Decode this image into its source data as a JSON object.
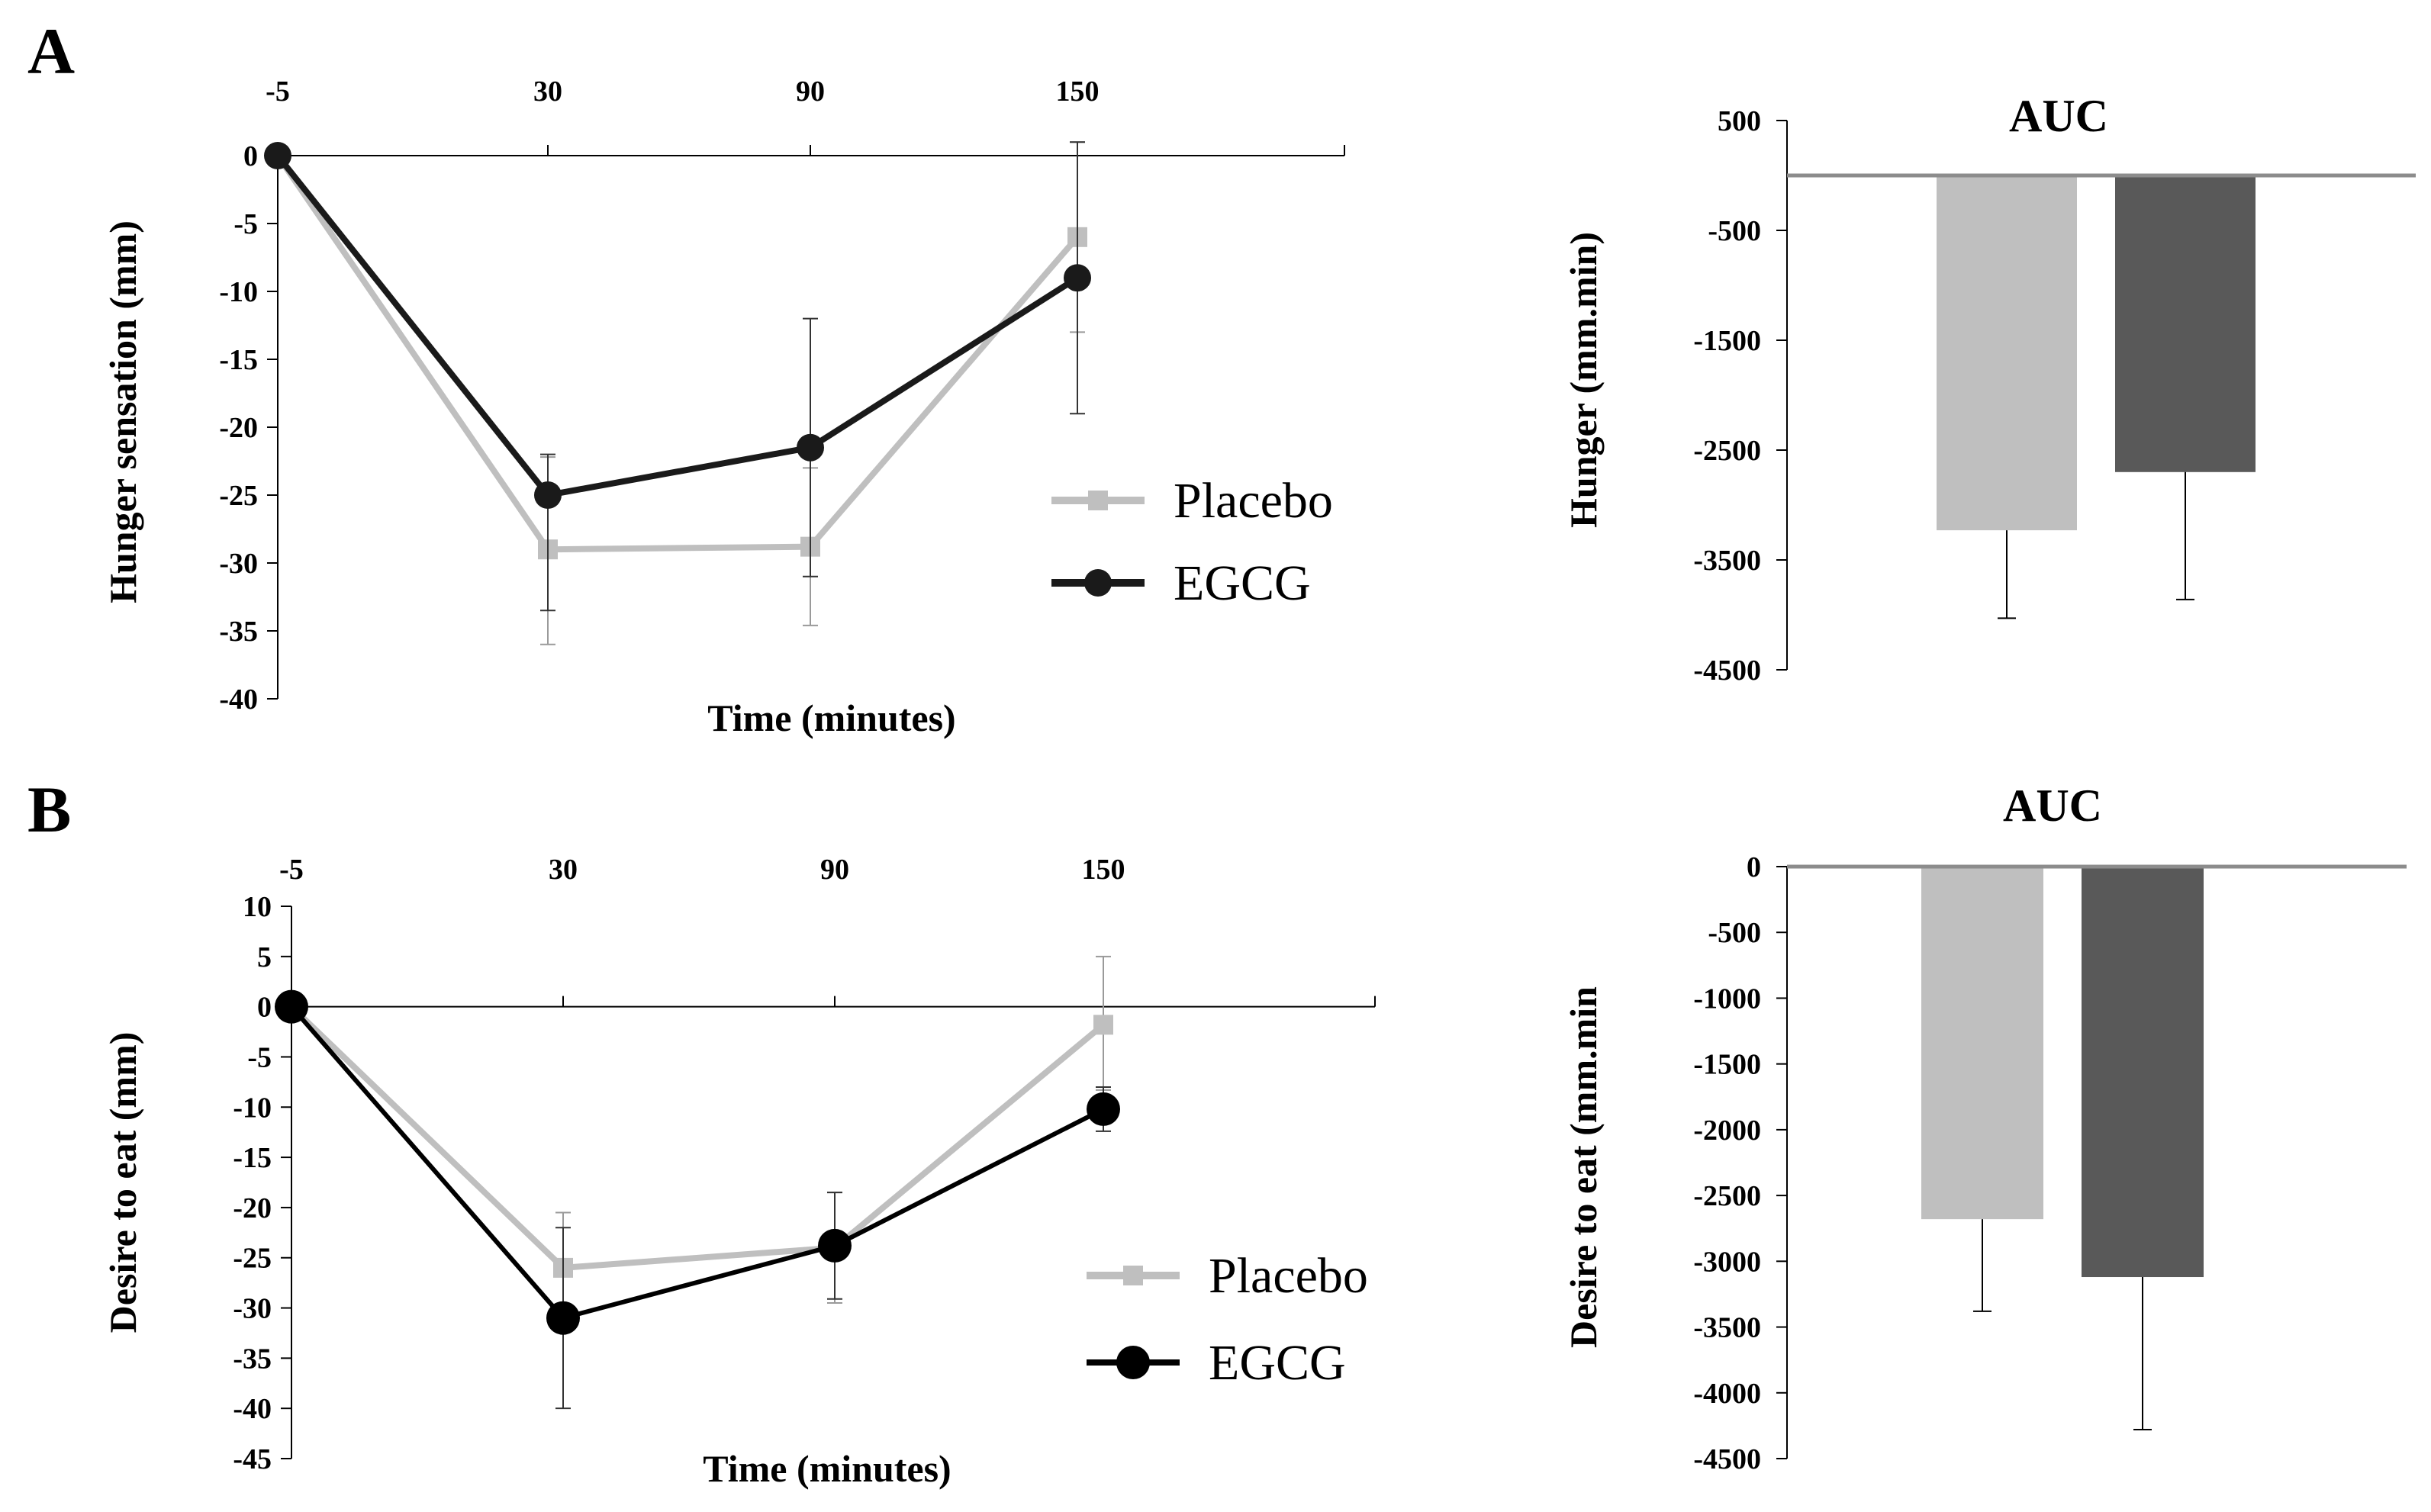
{
  "figure": {
    "panel_a_label": "A",
    "panel_b_label": "B"
  },
  "chart_data": [
    {
      "id": "a-line",
      "type": "line",
      "panel": "A",
      "title": "",
      "xlabel": "Time (minutes)",
      "ylabel": "Hunger sensation (mm)",
      "x": [
        "-5",
        "30",
        "90",
        "150"
      ],
      "ylim": [
        -40,
        0
      ],
      "yticks": [
        0,
        -5,
        -10,
        -15,
        -20,
        -25,
        -30,
        -35,
        -40
      ],
      "x_axis_at_top": true,
      "legend_position": "center-right",
      "series": [
        {
          "name": "Placebo",
          "color": "#bfbfbf",
          "marker": "square",
          "values": [
            0,
            -29,
            -28.8,
            -6
          ],
          "err_low": [
            0,
            7,
            5.8,
            7
          ],
          "err_high": [
            0,
            6.8,
            5.8,
            7
          ]
        },
        {
          "name": "EGCG",
          "color": "#1a1a1a",
          "marker": "circle",
          "values": [
            0,
            -25,
            -21.5,
            -9
          ],
          "err_low": [
            0,
            8.5,
            9.5,
            10
          ],
          "err_high": [
            0,
            3,
            9.5,
            10
          ]
        }
      ]
    },
    {
      "id": "a-bar",
      "type": "bar",
      "panel": "A",
      "title": "AUC",
      "xlabel": "",
      "ylabel": "Hunger (mm.min)",
      "categories": [
        "Placebo",
        "EGCG"
      ],
      "ylim": [
        -4500,
        500
      ],
      "yticks": [
        500,
        -500,
        -1500,
        -2500,
        -3500,
        -4500
      ],
      "values": [
        -3230,
        -2700
      ],
      "errors": [
        800,
        1160
      ],
      "colors": [
        "#bfbfbf",
        "#595959"
      ]
    },
    {
      "id": "b-line",
      "type": "line",
      "panel": "B",
      "title": "",
      "xlabel": "Time (minutes)",
      "ylabel": "Desire to eat (mm)",
      "x": [
        "-5",
        "30",
        "90",
        "150"
      ],
      "ylim": [
        -45,
        10
      ],
      "yticks": [
        10,
        5,
        0,
        -5,
        -10,
        -15,
        -20,
        -25,
        -30,
        -35,
        -40,
        -45
      ],
      "x_axis_at_top": true,
      "legend_position": "center-right",
      "series": [
        {
          "name": "Placebo",
          "color": "#bfbfbf",
          "marker": "square",
          "values": [
            0,
            -26,
            -24,
            -1.8
          ],
          "err_low": [
            0,
            5.5,
            5.5,
            6.5
          ],
          "err_high": [
            0,
            5.5,
            5.5,
            6.8
          ]
        },
        {
          "name": "EGCG",
          "color": "#000000",
          "marker": "circle",
          "values": [
            0,
            -31,
            -23.8,
            -10.2
          ],
          "err_low": [
            0,
            9,
            5.3,
            2.2
          ],
          "err_high": [
            0,
            9,
            5.3,
            2.2
          ]
        }
      ]
    },
    {
      "id": "b-bar",
      "type": "bar",
      "panel": "B",
      "title": "AUC",
      "xlabel": "",
      "ylabel": "Desire to eat (mm.min",
      "categories": [
        "Placebo",
        "EGCG"
      ],
      "ylim": [
        -4500,
        0
      ],
      "yticks": [
        0,
        -500,
        -1000,
        -1500,
        -2000,
        -2500,
        -3000,
        -3500,
        -4000,
        -4500
      ],
      "values": [
        -2680,
        -3120
      ],
      "errors": [
        700,
        1160
      ],
      "colors": [
        "#bfbfbf",
        "#595959"
      ]
    }
  ]
}
